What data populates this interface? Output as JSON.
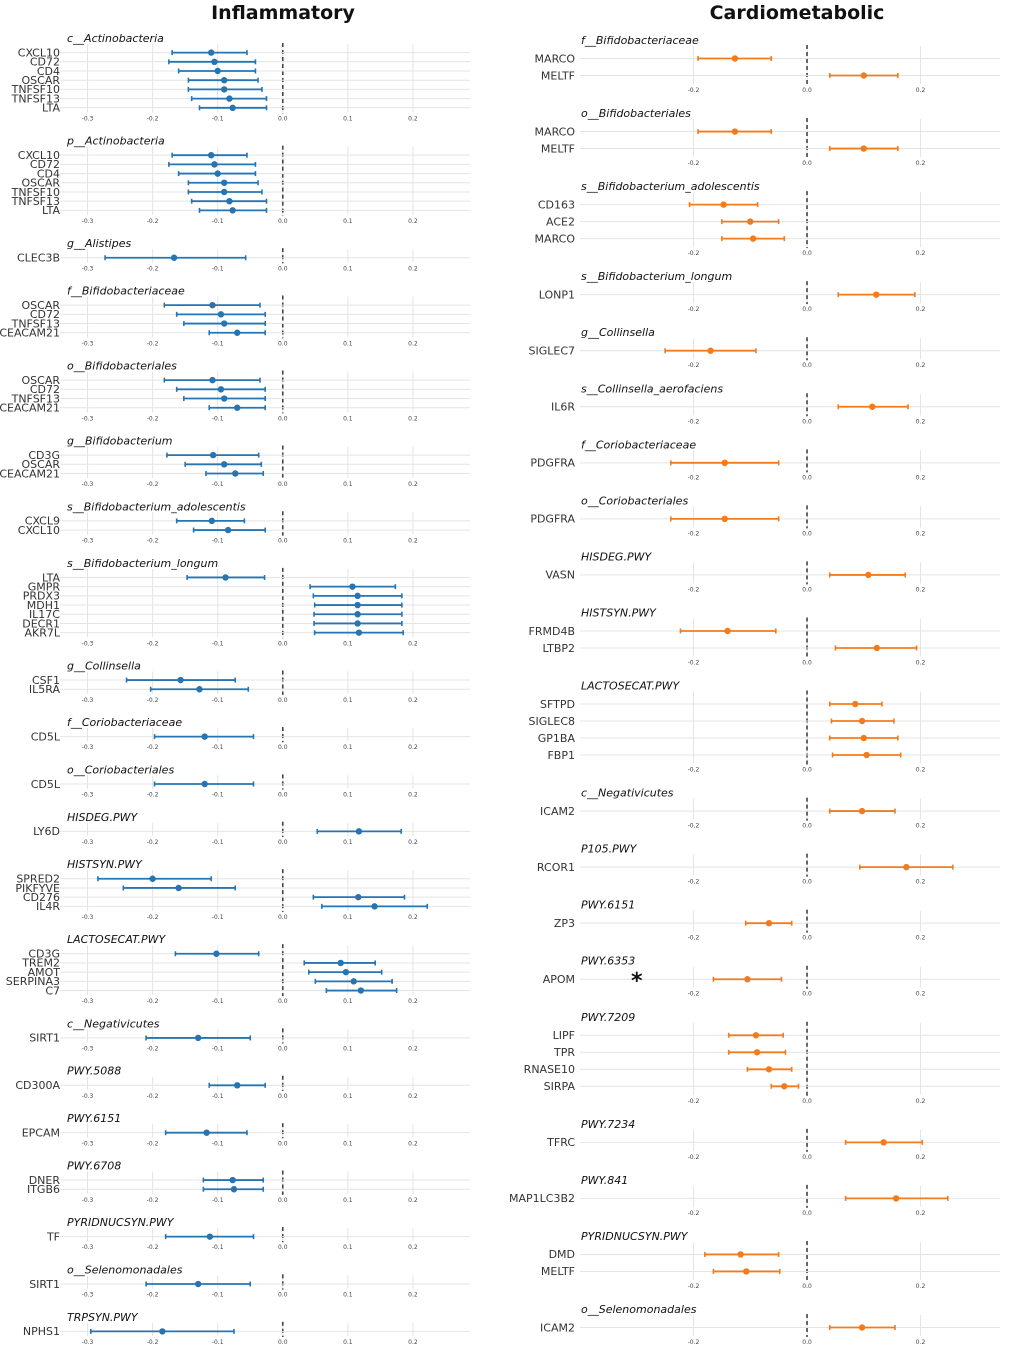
{
  "titles": {
    "left": "Inflammatory",
    "right": "Cardiometabolic"
  },
  "colors": {
    "left_series": "#2674b1",
    "right_series": "#f27b1d",
    "grid": "#e4e4e4",
    "zero_line": "#444444"
  },
  "chart_data": [
    {
      "type": "scatter",
      "subtype": "forest",
      "column": "Inflammatory",
      "series_color": "#2674b1",
      "xlim": [
        -0.33,
        0.28
      ],
      "xticks": [
        -0.3,
        -0.2,
        -0.1,
        0.0,
        0.1,
        0.2
      ],
      "xtick_labels": [
        "-0.3",
        "-0.2",
        "-0.1",
        "0.0",
        "0.1",
        "0.2"
      ],
      "panels": [
        {
          "title": "c__Actinobacteria",
          "rows": [
            {
              "label": "CXCL10",
              "est": -0.11,
              "lo": -0.17,
              "hi": -0.055
            },
            {
              "label": "CD72",
              "est": -0.105,
              "lo": -0.175,
              "hi": -0.042
            },
            {
              "label": "CD4",
              "est": -0.1,
              "lo": -0.16,
              "hi": -0.042
            },
            {
              "label": "OSCAR",
              "est": -0.09,
              "lo": -0.145,
              "hi": -0.038
            },
            {
              "label": "TNFSF10",
              "est": -0.09,
              "lo": -0.145,
              "hi": -0.032
            },
            {
              "label": "TNFSF13",
              "est": -0.082,
              "lo": -0.14,
              "hi": -0.025
            },
            {
              "label": "LTA",
              "est": -0.077,
              "lo": -0.128,
              "hi": -0.025
            }
          ]
        },
        {
          "title": "p__Actinobacteria",
          "rows": [
            {
              "label": "CXCL10",
              "est": -0.11,
              "lo": -0.17,
              "hi": -0.055
            },
            {
              "label": "CD72",
              "est": -0.105,
              "lo": -0.175,
              "hi": -0.042
            },
            {
              "label": "CD4",
              "est": -0.1,
              "lo": -0.16,
              "hi": -0.042
            },
            {
              "label": "OSCAR",
              "est": -0.09,
              "lo": -0.145,
              "hi": -0.038
            },
            {
              "label": "TNFSF10",
              "est": -0.09,
              "lo": -0.145,
              "hi": -0.032
            },
            {
              "label": "TNFSF13",
              "est": -0.082,
              "lo": -0.14,
              "hi": -0.025
            },
            {
              "label": "LTA",
              "est": -0.077,
              "lo": -0.128,
              "hi": -0.025
            }
          ]
        },
        {
          "title": "g__Alistipes",
          "rows": [
            {
              "label": "CLEC3B",
              "est": -0.167,
              "lo": -0.273,
              "hi": -0.057
            }
          ]
        },
        {
          "title": "f__Bifidobacteriaceae",
          "rows": [
            {
              "label": "OSCAR",
              "est": -0.108,
              "lo": -0.182,
              "hi": -0.035
            },
            {
              "label": "CD72",
              "est": -0.095,
              "lo": -0.163,
              "hi": -0.027
            },
            {
              "label": "TNFSF13",
              "est": -0.09,
              "lo": -0.152,
              "hi": -0.027
            },
            {
              "label": "CEACAM21",
              "est": -0.07,
              "lo": -0.113,
              "hi": -0.027
            }
          ]
        },
        {
          "title": "o__Bifidobacteriales",
          "rows": [
            {
              "label": "OSCAR",
              "est": -0.108,
              "lo": -0.182,
              "hi": -0.035
            },
            {
              "label": "CD72",
              "est": -0.095,
              "lo": -0.163,
              "hi": -0.027
            },
            {
              "label": "TNFSF13",
              "est": -0.09,
              "lo": -0.152,
              "hi": -0.027
            },
            {
              "label": "CEACAM21",
              "est": -0.07,
              "lo": -0.113,
              "hi": -0.027
            }
          ]
        },
        {
          "title": "g__Bifidobacterium",
          "rows": [
            {
              "label": "CD3G",
              "est": -0.107,
              "lo": -0.178,
              "hi": -0.037
            },
            {
              "label": "OSCAR",
              "est": -0.09,
              "lo": -0.15,
              "hi": -0.033
            },
            {
              "label": "CEACAM21",
              "est": -0.073,
              "lo": -0.118,
              "hi": -0.03
            }
          ]
        },
        {
          "title": "s__Bifidobacterium_adolescentis",
          "rows": [
            {
              "label": "CXCL9",
              "est": -0.109,
              "lo": -0.163,
              "hi": -0.059
            },
            {
              "label": "CXCL10",
              "est": -0.084,
              "lo": -0.137,
              "hi": -0.027
            }
          ]
        },
        {
          "title": "s__Bifidobacterium_longum",
          "rows": [
            {
              "label": "LTA",
              "est": -0.088,
              "lo": -0.147,
              "hi": -0.028
            },
            {
              "label": "GMPR",
              "est": 0.107,
              "lo": 0.042,
              "hi": 0.173
            },
            {
              "label": "PRDX3",
              "est": 0.115,
              "lo": 0.047,
              "hi": 0.183
            },
            {
              "label": "MDH1",
              "est": 0.115,
              "lo": 0.049,
              "hi": 0.183
            },
            {
              "label": "IL17C",
              "est": 0.115,
              "lo": 0.048,
              "hi": 0.183
            },
            {
              "label": "DECR1",
              "est": 0.115,
              "lo": 0.048,
              "hi": 0.183
            },
            {
              "label": "AKR7L",
              "est": 0.117,
              "lo": 0.049,
              "hi": 0.185
            }
          ]
        },
        {
          "title": "g__Collinsella",
          "rows": [
            {
              "label": "CSF1",
              "est": -0.157,
              "lo": -0.24,
              "hi": -0.073
            },
            {
              "label": "IL5RA",
              "est": -0.128,
              "lo": -0.203,
              "hi": -0.053
            }
          ]
        },
        {
          "title": "f__Coriobacteriaceae",
          "rows": [
            {
              "label": "CD5L",
              "est": -0.12,
              "lo": -0.197,
              "hi": -0.045
            }
          ]
        },
        {
          "title": "o__Coriobacteriales",
          "rows": [
            {
              "label": "CD5L",
              "est": -0.12,
              "lo": -0.197,
              "hi": -0.045
            }
          ]
        },
        {
          "title": "HISDEG.PWY",
          "rows": [
            {
              "label": "LY6D",
              "est": 0.117,
              "lo": 0.053,
              "hi": 0.182
            }
          ]
        },
        {
          "title": "HISTSYN.PWY",
          "rows": [
            {
              "label": "SPRED2",
              "est": -0.2,
              "lo": -0.284,
              "hi": -0.11
            },
            {
              "label": "PIKFYVE",
              "est": -0.16,
              "lo": -0.245,
              "hi": -0.073
            },
            {
              "label": "CD276",
              "est": 0.116,
              "lo": 0.047,
              "hi": 0.187
            },
            {
              "label": "IL4R",
              "est": 0.141,
              "lo": 0.06,
              "hi": 0.222
            }
          ]
        },
        {
          "title": "LACTOSECAT.PWY",
          "rows": [
            {
              "label": "CD3G",
              "est": -0.102,
              "lo": -0.165,
              "hi": -0.037
            },
            {
              "label": "TREM2",
              "est": 0.089,
              "lo": 0.033,
              "hi": 0.142
            },
            {
              "label": "AMOT",
              "est": 0.097,
              "lo": 0.04,
              "hi": 0.152
            },
            {
              "label": "SERPINA3",
              "est": 0.109,
              "lo": 0.05,
              "hi": 0.168
            },
            {
              "label": "C7",
              "est": 0.12,
              "lo": 0.067,
              "hi": 0.175
            }
          ]
        },
        {
          "title": "c__Negativicutes",
          "rows": [
            {
              "label": "SIRT1",
              "est": -0.13,
              "lo": -0.21,
              "hi": -0.05
            }
          ]
        },
        {
          "title": "PWY.5088",
          "rows": [
            {
              "label": "CD300A",
              "est": -0.07,
              "lo": -0.113,
              "hi": -0.027
            }
          ]
        },
        {
          "title": "PWY.6151",
          "rows": [
            {
              "label": "EPCAM",
              "est": -0.117,
              "lo": -0.18,
              "hi": -0.055
            }
          ]
        },
        {
          "title": "PWY.6708",
          "rows": [
            {
              "label": "DNER",
              "est": -0.077,
              "lo": -0.122,
              "hi": -0.03
            },
            {
              "label": "ITGB6",
              "est": -0.075,
              "lo": -0.122,
              "hi": -0.03
            }
          ]
        },
        {
          "title": "PYRIDNUCSYN.PWY",
          "rows": [
            {
              "label": "TF",
              "est": -0.112,
              "lo": -0.18,
              "hi": -0.045
            }
          ]
        },
        {
          "title": "o__Selenomonadales",
          "rows": [
            {
              "label": "SIRT1",
              "est": -0.13,
              "lo": -0.21,
              "hi": -0.05
            }
          ]
        },
        {
          "title": "TRPSYN.PWY",
          "rows": [
            {
              "label": "NPHS1",
              "est": -0.185,
              "lo": -0.295,
              "hi": -0.075
            }
          ]
        }
      ]
    },
    {
      "type": "scatter",
      "subtype": "forest",
      "column": "Cardiometabolic",
      "series_color": "#f27b1d",
      "xlim": [
        -0.4,
        0.34
      ],
      "xticks": [
        -0.2,
        0.0,
        0.2
      ],
      "xtick_labels": [
        "-0.2",
        "0.0",
        "0.2"
      ],
      "panels": [
        {
          "title": "f__Bifidobacteriaceae",
          "rows": [
            {
              "label": "MARCO",
              "est": -0.127,
              "lo": -0.192,
              "hi": -0.063
            },
            {
              "label": "MELTF",
              "est": 0.1,
              "lo": 0.04,
              "hi": 0.16
            }
          ]
        },
        {
          "title": "o__Bifidobacteriales",
          "rows": [
            {
              "label": "MARCO",
              "est": -0.127,
              "lo": -0.192,
              "hi": -0.063
            },
            {
              "label": "MELTF",
              "est": 0.1,
              "lo": 0.04,
              "hi": 0.16
            }
          ]
        },
        {
          "title": "s__Bifidobacterium_adolescentis",
          "rows": [
            {
              "label": "CD163",
              "est": -0.147,
              "lo": -0.207,
              "hi": -0.087
            },
            {
              "label": "ACE2",
              "est": -0.1,
              "lo": -0.15,
              "hi": -0.05
            },
            {
              "label": "MARCO",
              "est": -0.095,
              "lo": -0.15,
              "hi": -0.04
            }
          ]
        },
        {
          "title": "s__Bifidobacterium_longum",
          "rows": [
            {
              "label": "LONP1",
              "est": 0.122,
              "lo": 0.055,
              "hi": 0.19
            }
          ]
        },
        {
          "title": "g__Collinsella",
          "rows": [
            {
              "label": "SIGLEC7",
              "est": -0.17,
              "lo": -0.25,
              "hi": -0.09
            }
          ]
        },
        {
          "title": "s__Collinsella_aerofaciens",
          "rows": [
            {
              "label": "IL6R",
              "est": 0.115,
              "lo": 0.055,
              "hi": 0.178
            }
          ]
        },
        {
          "title": "f__Coriobacteriaceae",
          "rows": [
            {
              "label": "PDGFRA",
              "est": -0.145,
              "lo": -0.24,
              "hi": -0.05
            }
          ]
        },
        {
          "title": "o__Coriobacteriales",
          "rows": [
            {
              "label": "PDGFRA",
              "est": -0.145,
              "lo": -0.24,
              "hi": -0.05
            }
          ]
        },
        {
          "title": "HISDEG.PWY",
          "rows": [
            {
              "label": "VASN",
              "est": 0.108,
              "lo": 0.04,
              "hi": 0.173
            }
          ]
        },
        {
          "title": "HISTSYN.PWY",
          "rows": [
            {
              "label": "FRMD4B",
              "est": -0.14,
              "lo": -0.223,
              "hi": -0.055
            },
            {
              "label": "LTBP2",
              "est": 0.123,
              "lo": 0.05,
              "hi": 0.193
            }
          ]
        },
        {
          "title": "LACTOSECAT.PWY",
          "rows": [
            {
              "label": "SFTPD",
              "est": 0.085,
              "lo": 0.04,
              "hi": 0.132
            },
            {
              "label": "SIGLEC8",
              "est": 0.097,
              "lo": 0.043,
              "hi": 0.153
            },
            {
              "label": "GP1BA",
              "est": 0.1,
              "lo": 0.04,
              "hi": 0.16
            },
            {
              "label": "FBP1",
              "est": 0.105,
              "lo": 0.045,
              "hi": 0.165
            }
          ]
        },
        {
          "title": "c__Negativicutes",
          "rows": [
            {
              "label": "ICAM2",
              "est": 0.097,
              "lo": 0.04,
              "hi": 0.155
            }
          ]
        },
        {
          "title": "P105.PWY",
          "rows": [
            {
              "label": "RCOR1",
              "est": 0.175,
              "lo": 0.093,
              "hi": 0.257
            }
          ]
        },
        {
          "title": "PWY.6151",
          "rows": [
            {
              "label": "ZP3",
              "est": -0.067,
              "lo": -0.108,
              "hi": -0.027
            }
          ]
        },
        {
          "title": "PWY.6353",
          "annotation": "*",
          "rows": [
            {
              "label": "APOM",
              "est": -0.105,
              "lo": -0.165,
              "hi": -0.045
            }
          ]
        },
        {
          "title": "PWY.7209",
          "rows": [
            {
              "label": "LIPF",
              "est": -0.09,
              "lo": -0.138,
              "hi": -0.042
            },
            {
              "label": "TPR",
              "est": -0.088,
              "lo": -0.138,
              "hi": -0.038
            },
            {
              "label": "RNASE10",
              "est": -0.067,
              "lo": -0.105,
              "hi": -0.027
            },
            {
              "label": "SIRPA",
              "est": -0.04,
              "lo": -0.063,
              "hi": -0.015
            }
          ]
        },
        {
          "title": "PWY.7234",
          "rows": [
            {
              "label": "TFRC",
              "est": 0.135,
              "lo": 0.068,
              "hi": 0.203
            }
          ]
        },
        {
          "title": "PWY.841",
          "rows": [
            {
              "label": "MAP1LC3B2",
              "est": 0.157,
              "lo": 0.068,
              "hi": 0.248
            }
          ]
        },
        {
          "title": "PYRIDNUCSYN.PWY",
          "rows": [
            {
              "label": "DMD",
              "est": -0.117,
              "lo": -0.18,
              "hi": -0.05
            },
            {
              "label": "MELTF",
              "est": -0.107,
              "lo": -0.165,
              "hi": -0.048
            }
          ]
        },
        {
          "title": "o__Selenomonadales",
          "rows": [
            {
              "label": "ICAM2",
              "est": 0.097,
              "lo": 0.04,
              "hi": 0.155
            }
          ]
        }
      ]
    }
  ]
}
